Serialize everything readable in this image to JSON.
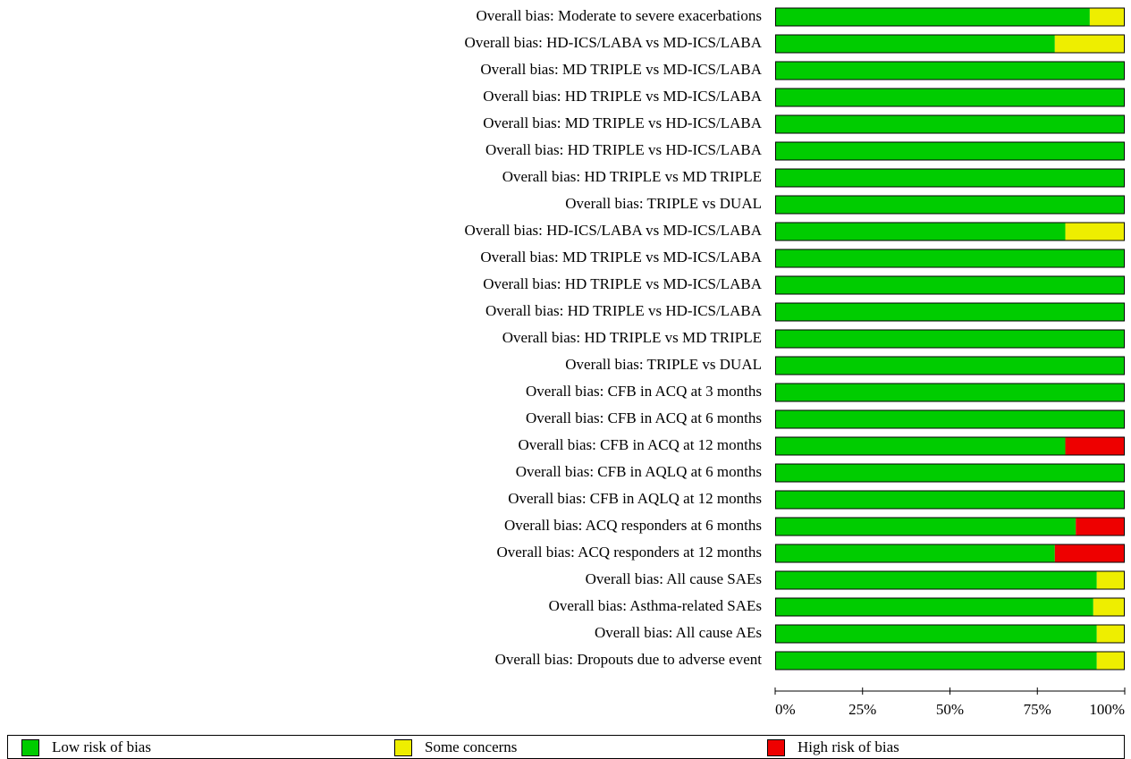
{
  "chart_data": {
    "type": "stacked_barh",
    "categories": [
      "Overall bias: Moderate to severe exacerbations",
      "Overall bias: HD-ICS/LABA vs MD-ICS/LABA",
      "Overall bias: MD TRIPLE vs MD-ICS/LABA",
      "Overall bias: HD TRIPLE vs MD-ICS/LABA",
      "Overall bias: MD TRIPLE vs HD-ICS/LABA",
      "Overall bias: HD TRIPLE vs HD-ICS/LABA",
      "Overall bias: HD TRIPLE vs MD TRIPLE",
      "Overall bias: TRIPLE vs DUAL",
      "Overall bias: HD-ICS/LABA vs MD-ICS/LABA",
      "Overall bias: MD TRIPLE vs MD-ICS/LABA",
      "Overall bias: HD TRIPLE vs MD-ICS/LABA",
      "Overall bias: HD TRIPLE vs HD-ICS/LABA",
      "Overall bias: HD TRIPLE vs MD TRIPLE",
      "Overall bias: TRIPLE vs DUAL",
      "Overall bias: CFB in ACQ at 3 months",
      "Overall bias: CFB in ACQ at 6 months",
      "Overall bias: CFB in ACQ at 12 months",
      "Overall bias: CFB in AQLQ at 6 months",
      "Overall bias: CFB in AQLQ at 12 months",
      "Overall bias: ACQ responders at 6 months",
      "Overall bias: ACQ responders at 12 months",
      "Overall bias: All cause SAEs",
      "Overall bias: Asthma-related SAEs",
      "Overall bias: All cause AEs",
      "Overall bias: Dropouts due to adverse event"
    ],
    "series": [
      {
        "name": "Low risk of bias",
        "color": "#00cc00",
        "values": [
          90,
          80,
          100,
          100,
          100,
          100,
          100,
          100,
          83,
          100,
          100,
          100,
          100,
          100,
          100,
          100,
          83,
          100,
          100,
          86,
          80,
          92,
          91,
          92,
          92
        ]
      },
      {
        "name": "Some concerns",
        "color": "#eeee00",
        "values": [
          10,
          20,
          0,
          0,
          0,
          0,
          0,
          0,
          17,
          0,
          0,
          0,
          0,
          0,
          0,
          0,
          0,
          0,
          0,
          0,
          0,
          8,
          9,
          8,
          8
        ]
      },
      {
        "name": "High risk of bias",
        "color": "#ee0000",
        "values": [
          0,
          0,
          0,
          0,
          0,
          0,
          0,
          0,
          0,
          0,
          0,
          0,
          0,
          0,
          0,
          0,
          17,
          0,
          0,
          14,
          20,
          0,
          0,
          0,
          0
        ]
      }
    ],
    "xlim": [
      0,
      100
    ],
    "xticks": [
      {
        "value": 0,
        "label": "0%"
      },
      {
        "value": 25,
        "label": "25%"
      },
      {
        "value": 50,
        "label": "50%"
      },
      {
        "value": 75,
        "label": "75%"
      },
      {
        "value": 100,
        "label": "100%"
      }
    ],
    "legend": "bottom"
  }
}
